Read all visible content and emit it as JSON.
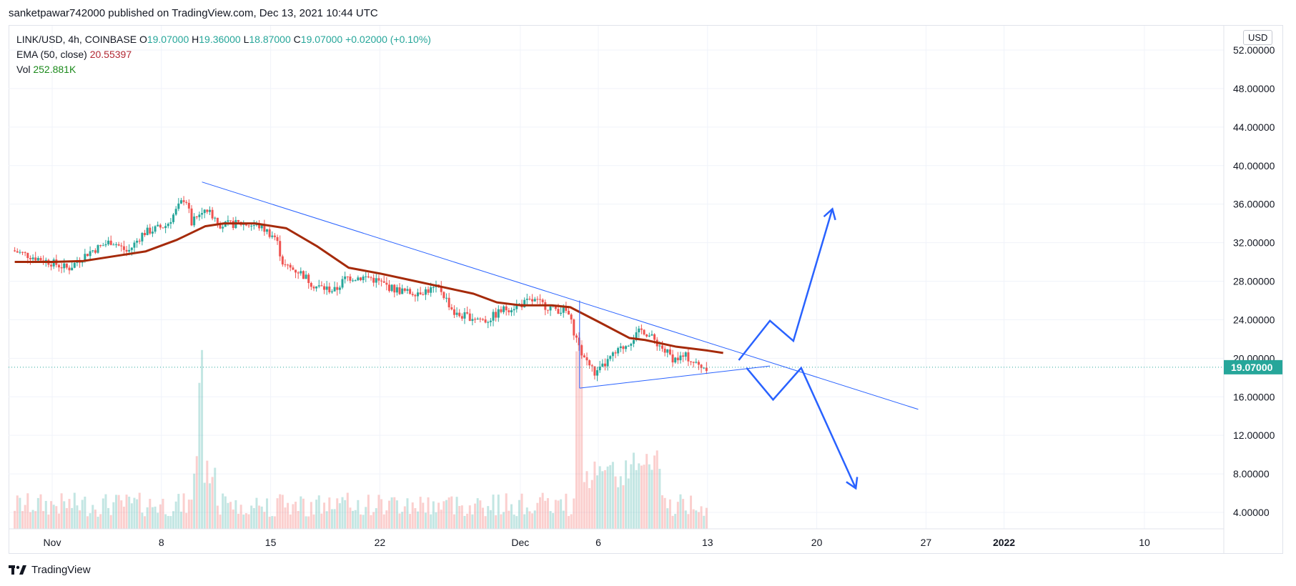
{
  "header": {
    "published_text": "sanketpawar742000 published on TradingView.com, Dec 13, 2021 10:44 UTC"
  },
  "legend": {
    "symbol": "LINK/USD, 4h, COINBASE",
    "open_label": "O",
    "open": "19.07000",
    "high_label": "H",
    "high": "19.36000",
    "low_label": "L",
    "low": "18.87000",
    "close_label": "C",
    "close": "19.07000",
    "change": "+0.02000 (+0.10%)",
    "ema_label": "EMA (50, close)",
    "ema_value": "20.55397",
    "vol_label": "Vol",
    "vol_value": "252.881K"
  },
  "currency": "USD",
  "footer": {
    "brand": "TradingView"
  },
  "colors": {
    "up": "#26a69a",
    "down": "#ef5350",
    "ema": "#a52a0a",
    "trendline": "#2962ff",
    "projection": "#2962ff"
  },
  "chart_data": {
    "type": "candlestick",
    "ylim": [
      2.5,
      54.5
    ],
    "yticks": [
      "52.00000",
      "48.00000",
      "44.00000",
      "40.00000",
      "36.00000",
      "32.00000",
      "28.00000",
      "24.00000",
      "20.00000",
      "16.00000",
      "12.00000",
      "8.00000",
      "4.00000"
    ],
    "ytick_values": [
      52,
      48,
      44,
      40,
      36,
      32,
      28,
      24,
      20,
      16,
      12,
      8,
      4
    ],
    "xlim_days": [
      -1.3,
      40.9
    ],
    "xticks": [
      {
        "label": "Nov",
        "day": 0
      },
      {
        "label": "8",
        "day": 7
      },
      {
        "label": "15",
        "day": 14
      },
      {
        "label": "22",
        "day": 21
      },
      {
        "label": "Dec",
        "day": 30
      },
      {
        "label": "6",
        "day": 35
      },
      {
        "label": "13",
        "day": 42
      },
      {
        "label": "20",
        "day": 49
      },
      {
        "label": "27",
        "day": 56
      },
      {
        "label": "2022",
        "day": 61
      },
      {
        "label": "10",
        "day": 70
      }
    ],
    "last_price": "19.07000",
    "last_price_value": 19.07,
    "price_path": [
      [
        -2.4,
        31.2
      ],
      [
        0,
        30.0
      ],
      [
        1.2,
        29.3
      ],
      [
        2.5,
        31.0
      ],
      [
        4,
        32.2
      ],
      [
        5,
        31.0
      ],
      [
        6,
        33.0
      ],
      [
        7.5,
        33.8
      ],
      [
        8.7,
        36.8
      ],
      [
        9.1,
        34.0
      ],
      [
        10,
        35.6
      ],
      [
        11,
        33.8
      ],
      [
        12.3,
        34.0
      ],
      [
        13.5,
        33.7
      ],
      [
        14.5,
        32.5
      ],
      [
        15,
        29.6
      ],
      [
        16,
        29.0
      ],
      [
        17,
        27.5
      ],
      [
        18.3,
        27.0
      ],
      [
        19,
        28.4
      ],
      [
        20.5,
        28.4
      ],
      [
        22,
        27.2
      ],
      [
        23,
        26.8
      ],
      [
        24,
        27.0
      ],
      [
        25,
        27.3
      ],
      [
        26,
        24.5
      ],
      [
        27,
        24.3
      ],
      [
        28,
        23.9
      ],
      [
        29,
        25.0
      ],
      [
        30,
        25.5
      ],
      [
        31,
        26.0
      ],
      [
        32,
        25.3
      ],
      [
        33.2,
        24.8
      ],
      [
        34,
        20.8
      ],
      [
        35,
        18.3
      ],
      [
        36,
        20.1
      ],
      [
        37,
        21.5
      ],
      [
        38,
        23.0
      ],
      [
        39,
        21.5
      ],
      [
        40,
        19.9
      ],
      [
        40.8,
        20.2
      ],
      [
        41.5,
        19.3
      ],
      [
        42,
        19.1
      ]
    ],
    "ema": [
      [
        -2.4,
        30.0
      ],
      [
        0,
        30.0
      ],
      [
        2,
        30.1
      ],
      [
        4,
        30.6
      ],
      [
        6,
        31.1
      ],
      [
        8,
        32.3
      ],
      [
        9.8,
        33.7
      ],
      [
        11,
        34.0
      ],
      [
        13,
        34.0
      ],
      [
        15,
        33.5
      ],
      [
        17,
        31.6
      ],
      [
        19,
        29.4
      ],
      [
        21,
        28.8
      ],
      [
        23,
        28.1
      ],
      [
        25,
        27.4
      ],
      [
        27,
        26.7
      ],
      [
        28.5,
        25.8
      ],
      [
        30,
        25.5
      ],
      [
        32,
        25.5
      ],
      [
        33.2,
        25.3
      ],
      [
        35,
        23.8
      ],
      [
        37,
        22.1
      ],
      [
        38,
        21.9
      ],
      [
        40,
        21.2
      ],
      [
        42,
        20.8
      ],
      [
        43,
        20.55
      ]
    ],
    "volume": {
      "ylim": [
        0,
        52
      ],
      "spike_days": [
        9.5,
        33.8
      ]
    },
    "annotations": {
      "descending_trendline": [
        [
          9.6,
          38.3
        ],
        [
          55.5,
          14.7
        ]
      ],
      "ascending_trendline": [
        [
          33.8,
          16.9
        ],
        [
          46.0,
          19.2
        ]
      ],
      "triangle_base": [
        [
          33.8,
          16.9
        ],
        [
          33.8,
          26.0
        ]
      ],
      "bullish_path": [
        [
          44,
          19.8
        ],
        [
          46,
          23.9
        ],
        [
          47.5,
          21.8
        ],
        [
          50,
          35.5
        ]
      ],
      "bearish_path": [
        [
          44.5,
          19.0
        ],
        [
          46.2,
          15.7
        ],
        [
          48,
          19.0
        ],
        [
          51.5,
          6.5
        ]
      ]
    }
  }
}
